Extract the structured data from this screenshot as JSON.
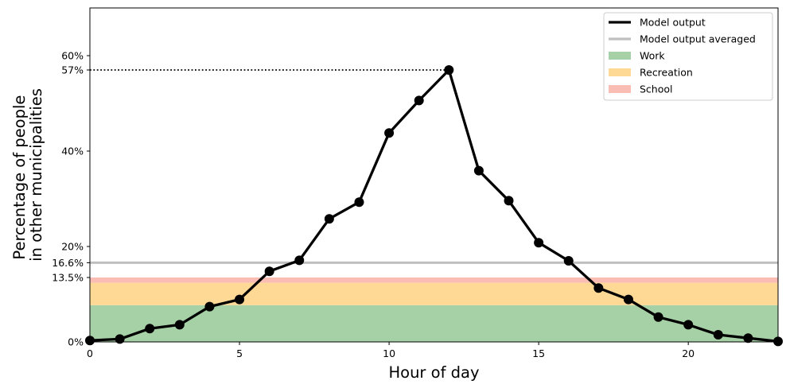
{
  "chart_data": {
    "type": "line",
    "xlabel": "Hour of day",
    "ylabel_lines": [
      "Percentage of people",
      "in other municipalities"
    ],
    "xlim": [
      0,
      23
    ],
    "ylim": [
      0,
      70
    ],
    "x_ticks": [
      0,
      5,
      10,
      15,
      20
    ],
    "x_tick_labels": [
      "0",
      "5",
      "10",
      "15",
      "20"
    ],
    "y_ticks": [
      0,
      13.5,
      16.6,
      20,
      40,
      57,
      60
    ],
    "y_tick_labels": [
      "0%",
      "13.5%",
      "16.6%",
      "20%",
      "40%",
      "57%",
      "60%"
    ],
    "x": [
      0,
      1,
      2,
      3,
      4,
      5,
      6,
      7,
      8,
      9,
      10,
      11,
      12,
      13,
      14,
      15,
      16,
      17,
      18,
      19,
      20,
      21,
      22,
      23
    ],
    "series": [
      {
        "name": "Model output",
        "values": [
          0.3,
          0.6,
          2.8,
          3.6,
          7.4,
          8.9,
          14.8,
          17.1,
          25.8,
          29.3,
          43.8,
          50.6,
          57.0,
          35.9,
          29.6,
          20.8,
          17.0,
          11.3,
          8.9,
          5.2,
          3.6,
          1.5,
          0.8,
          0.1
        ],
        "color": "#000000"
      }
    ],
    "averaged": {
      "name": "Model output averaged",
      "value": 16.6,
      "color": "#bfbfbf"
    },
    "stacked_bands": [
      {
        "name": "Work",
        "from": 0,
        "to": 7.7,
        "color": "#a6d0a6"
      },
      {
        "name": "Recreation",
        "from": 7.7,
        "to": 12.4,
        "color": "#fed996"
      },
      {
        "name": "School",
        "from": 12.4,
        "to": 13.5,
        "color": "#f9bdb3"
      }
    ],
    "peak_marker": {
      "value": 57,
      "from_x": 0,
      "to_x": 12,
      "style": "dotted"
    },
    "legend": {
      "placement": "top-right",
      "entries": [
        {
          "label": "Model output",
          "kind": "line",
          "color": "#000000"
        },
        {
          "label": "Model output averaged",
          "kind": "line",
          "color": "#bfbfbf"
        },
        {
          "label": "Work",
          "kind": "patch",
          "color": "#a6d0a6"
        },
        {
          "label": "Recreation",
          "kind": "patch",
          "color": "#fed996"
        },
        {
          "label": "School",
          "kind": "patch",
          "color": "#f9bdb3"
        }
      ]
    },
    "grid": false
  }
}
